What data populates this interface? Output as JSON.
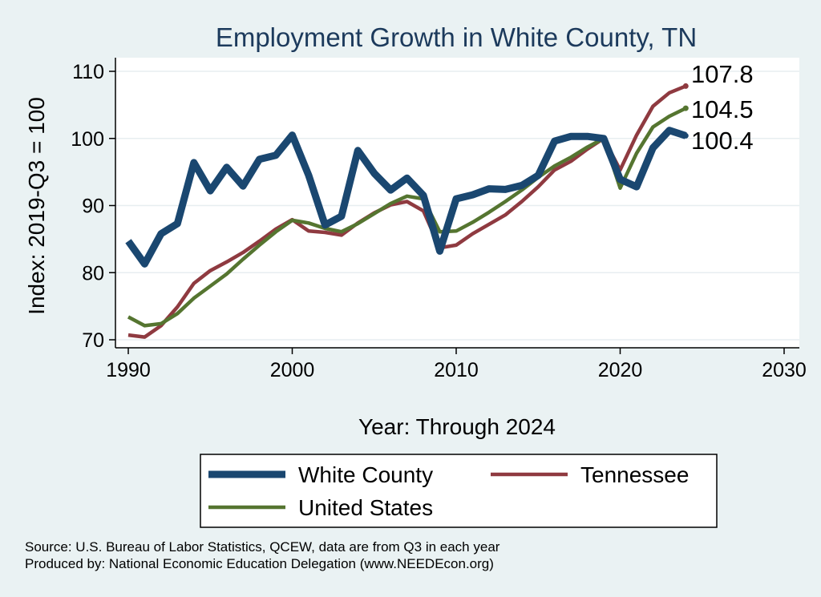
{
  "chart_data": {
    "type": "line",
    "title": "Employment Growth in White County, TN",
    "xlabel": "Year: Through 2024",
    "ylabel": "Index: 2019-Q3 = 100",
    "xlim": [
      1990,
      2030
    ],
    "ylim": [
      70,
      110
    ],
    "xticks": [
      1990,
      2000,
      2010,
      2020,
      2030
    ],
    "yticks": [
      70,
      80,
      90,
      100,
      110
    ],
    "grid": true,
    "legend_position": "bottom",
    "x": [
      1990,
      1991,
      1992,
      1993,
      1994,
      1995,
      1996,
      1997,
      1998,
      1999,
      2000,
      2001,
      2002,
      2003,
      2004,
      2005,
      2006,
      2007,
      2008,
      2009,
      2010,
      2011,
      2012,
      2013,
      2014,
      2015,
      2016,
      2017,
      2018,
      2019,
      2020,
      2021,
      2022,
      2023,
      2024
    ],
    "series": [
      {
        "name": "White  County",
        "color": "#1a4770",
        "end_label": "100.4",
        "values": [
          84.7,
          81.3,
          85.8,
          87.3,
          96.4,
          92.2,
          95.7,
          92.9,
          96.9,
          97.5,
          100.5,
          94.5,
          87.1,
          88.4,
          98.2,
          94.8,
          92.3,
          94.1,
          91.5,
          83.2,
          91.0,
          91.6,
          92.5,
          92.4,
          93.0,
          94.5,
          99.6,
          100.3,
          100.3,
          100.0,
          93.9,
          92.8,
          98.6,
          101.2,
          100.4
        ]
      },
      {
        "name": "Tennessee",
        "color": "#8f3a40",
        "end_label": "107.8",
        "values": [
          70.7,
          70.4,
          72.1,
          74.9,
          78.4,
          80.3,
          81.6,
          83.0,
          84.7,
          86.5,
          87.9,
          86.2,
          86.0,
          85.6,
          87.4,
          88.9,
          90.1,
          90.6,
          89.2,
          83.7,
          84.1,
          85.8,
          87.2,
          88.6,
          90.6,
          92.8,
          95.3,
          96.6,
          98.4,
          100.0,
          95.3,
          100.5,
          104.8,
          106.8,
          107.8
        ]
      },
      {
        "name": "United States",
        "color": "#557530",
        "end_label": "104.5",
        "values": [
          73.4,
          72.1,
          72.4,
          73.9,
          76.2,
          78.0,
          79.8,
          82.0,
          84.1,
          86.1,
          87.8,
          87.4,
          86.6,
          86.1,
          87.3,
          88.8,
          90.3,
          91.4,
          91.0,
          86.1,
          86.2,
          87.5,
          89.0,
          90.6,
          92.3,
          94.2,
          95.9,
          97.2,
          98.7,
          100.0,
          92.6,
          97.8,
          101.7,
          103.3,
          104.5
        ]
      }
    ]
  },
  "notes": {
    "source": "Source: U.S. Bureau of Labor Statistics, QCEW, data are from Q3 in each year",
    "produced_by": "Produced by: National Economic Education Delegation (www.NEEDEcon.org)"
  }
}
